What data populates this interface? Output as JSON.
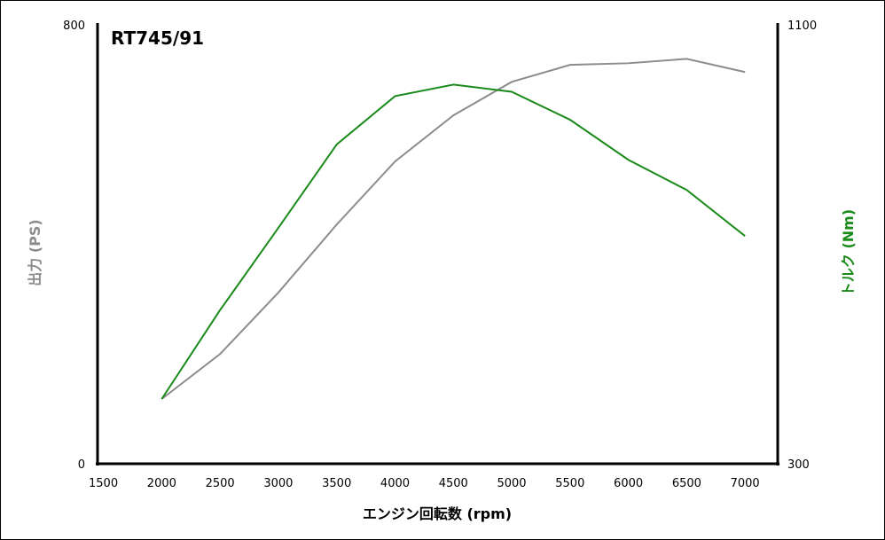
{
  "chart_data": {
    "type": "line",
    "title": "RT745/91",
    "xlabel": "エンジン回転数 (rpm)",
    "ylabel": "出力 (PS)",
    "y2label": "トルク (Nm)",
    "x": [
      2000,
      2500,
      3000,
      3500,
      4000,
      4500,
      5000,
      5500,
      6000,
      6500,
      7000
    ],
    "xticks": [
      "1500",
      "2000",
      "2500",
      "3000",
      "3500",
      "4000",
      "4500",
      "5000",
      "5500",
      "6000",
      "6500",
      "7000"
    ],
    "xlim": [
      1450,
      7280
    ],
    "ylim": [
      0,
      800
    ],
    "y2lim": [
      300,
      1100
    ],
    "yticks": [
      "0",
      "800"
    ],
    "y2ticks": [
      "300",
      "1100"
    ],
    "grid": false,
    "series": [
      {
        "name": "出力 (PS)",
        "axis": "left",
        "color": "#8c8c8c",
        "values": [
          118,
          200,
          312,
          436,
          551,
          635,
          696,
          727,
          730,
          738,
          714
        ]
      },
      {
        "name": "トルク (Nm)",
        "axis": "right",
        "color": "#1a8a1a",
        "values": [
          418,
          580,
          730,
          882,
          970,
          991,
          978,
          927,
          854,
          799,
          715
        ]
      }
    ]
  }
}
